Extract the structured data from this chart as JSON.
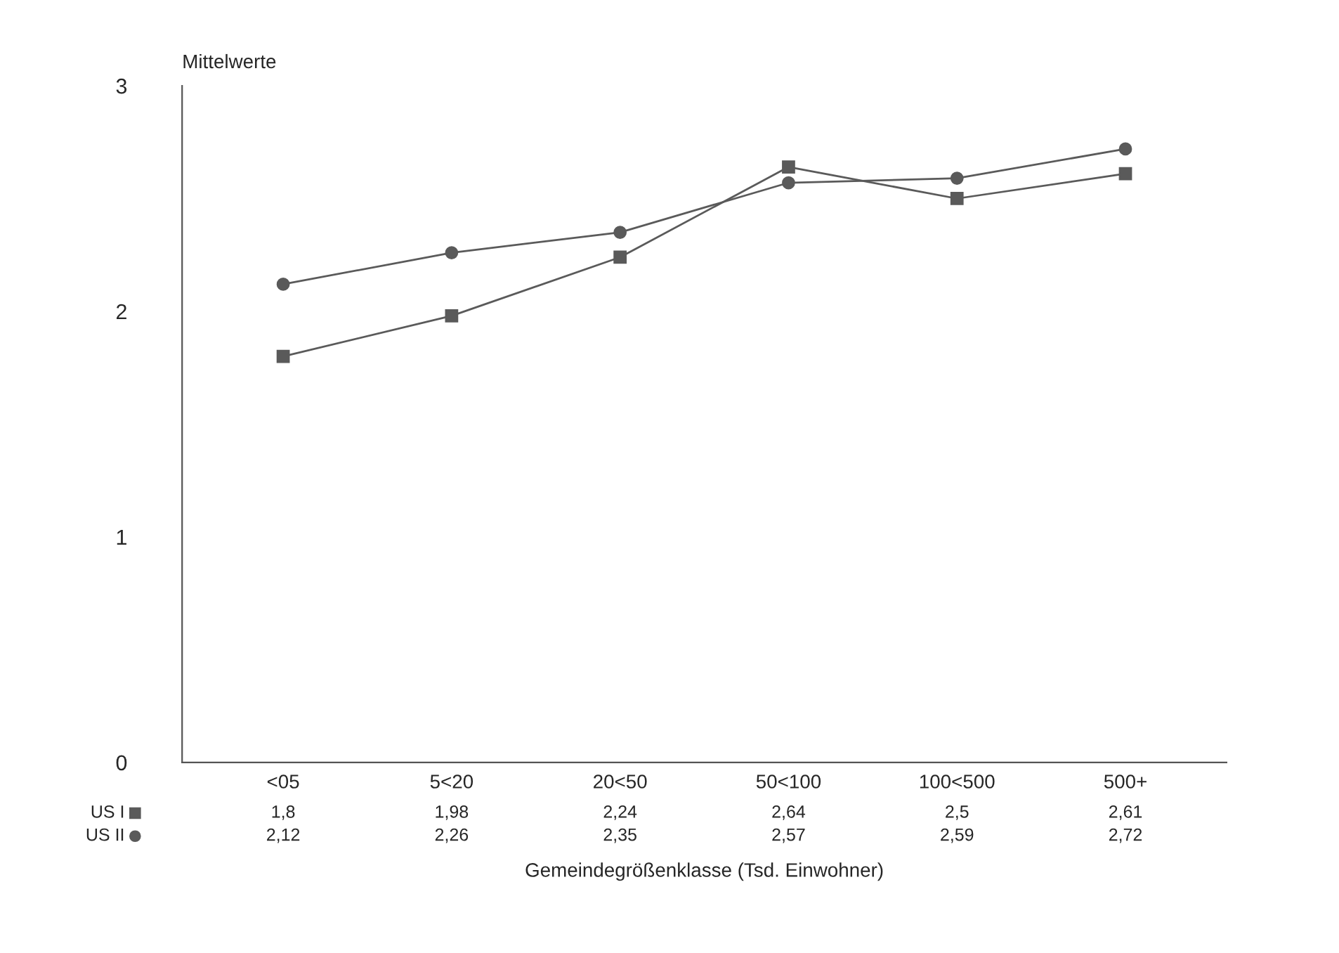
{
  "chart_data": {
    "type": "line",
    "ylabel": "Mittelwerte",
    "xlabel": "Gemeindegrößenklasse (Tsd. Einwohner)",
    "categories": [
      "<05",
      "5<20",
      "20<50",
      "50<100",
      "100<500",
      "500+"
    ],
    "series": [
      {
        "name": "US I",
        "color": "#5a5a5a",
        "marker": "square",
        "values": [
          1.8,
          1.98,
          2.24,
          2.64,
          2.5,
          2.61
        ],
        "value_labels": [
          "1,8",
          "1,98",
          "2,24",
          "2,64",
          "2,5",
          "2,61"
        ]
      },
      {
        "name": "US II",
        "color": "#5a5a5a",
        "marker": "circle",
        "values": [
          2.12,
          2.26,
          2.35,
          2.57,
          2.59,
          2.72
        ],
        "value_labels": [
          "2,12",
          "2,26",
          "2,35",
          "2,57",
          "2,59",
          "2,72"
        ]
      }
    ],
    "ylim": [
      0,
      3
    ],
    "yticks": [
      0,
      1,
      2,
      3
    ],
    "grid": false,
    "legend": "bottom left",
    "line_style": "solid"
  }
}
